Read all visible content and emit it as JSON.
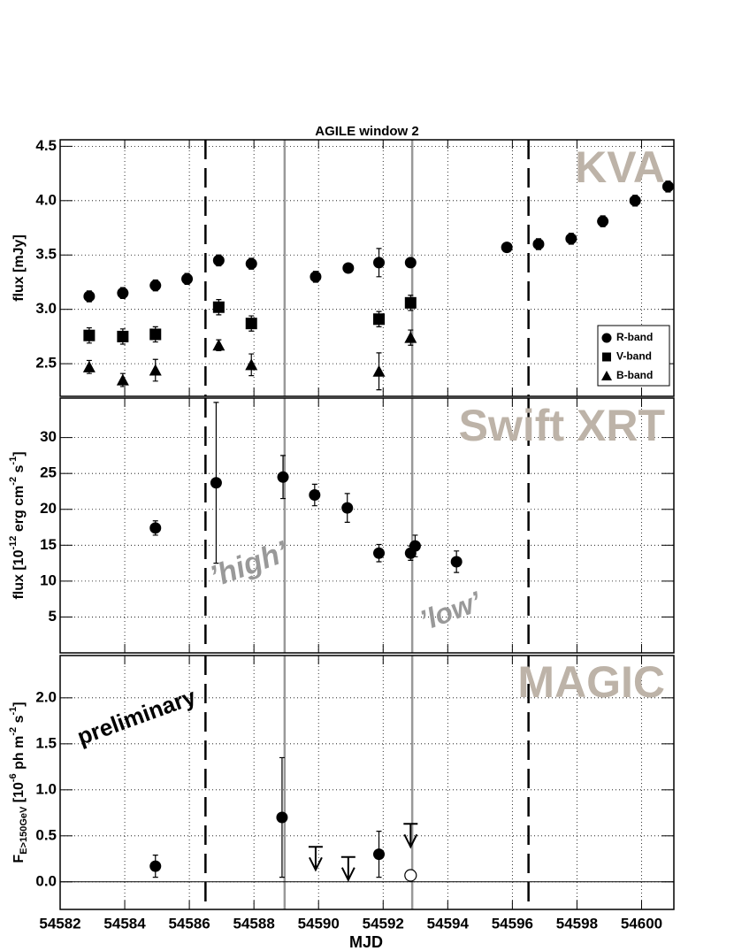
{
  "chart_data": [
    {
      "type": "scatter",
      "title": "AGILE window 2",
      "ylabel": "flux [mJy]",
      "watermark": "KVA",
      "ylim": [
        2.2,
        4.56
      ],
      "yticks": [
        4.5,
        {
          "value": 4,
          "label": "4.0"
        },
        3.5,
        {
          "value": 3,
          "label": "3.0"
        },
        2.5
      ],
      "grid": true,
      "legend": "lower right",
      "dashed_lines": [
        54586.5,
        54596.5
      ],
      "gray_lines": [
        54588.95,
        54592.9
      ],
      "series": [
        {
          "name": "R-band",
          "marker": "circle",
          "color": "#000000",
          "x": [
            54582.9,
            54583.94,
            54584.95,
            54585.93,
            54586.91,
            54587.92,
            54589.91,
            54590.92,
            54591.87,
            54592.85,
            54595.83,
            54596.81,
            54597.82,
            54598.8,
            54599.8,
            54600.82
          ],
          "values": [
            3.12,
            3.15,
            3.22,
            3.28,
            3.45,
            3.42,
            3.3,
            3.38,
            3.43,
            3.43,
            3.57,
            3.6,
            3.65,
            3.81,
            4.0,
            4.13
          ],
          "errors": [
            0.05,
            0.05,
            0.05,
            0.05,
            0.05,
            0.05,
            0.05,
            0.04,
            0.13,
            0.03,
            0.04,
            0.05,
            0.05,
            0.05,
            0.05,
            0.05
          ]
        },
        {
          "name": "V-band",
          "marker": "square",
          "color": "#000000",
          "x": [
            54582.9,
            54583.94,
            54584.95,
            54586.91,
            54587.92,
            54591.87,
            54592.85
          ],
          "values": [
            2.76,
            2.75,
            2.77,
            3.02,
            2.87,
            2.91,
            3.06
          ],
          "errors": [
            0.07,
            0.07,
            0.07,
            0.07,
            0.07,
            0.07,
            0.07
          ]
        },
        {
          "name": "B-band",
          "marker": "triangle",
          "color": "#000000",
          "x": [
            54582.9,
            54583.94,
            54584.95,
            54586.91,
            54587.92,
            54591.87,
            54592.85
          ],
          "values": [
            2.47,
            2.35,
            2.44,
            2.67,
            2.49,
            2.43,
            2.74
          ],
          "errors": [
            0.06,
            0.06,
            0.1,
            0.05,
            0.1,
            0.17,
            0.07
          ]
        }
      ]
    },
    {
      "type": "scatter",
      "ylabel": [
        "flux [10",
        "-12",
        " erg cm",
        "-2",
        " s",
        "-1",
        "]"
      ],
      "watermark": "Swift XRT",
      "ylim": [
        0,
        35.5
      ],
      "yticks": [
        5,
        10,
        15,
        20,
        25,
        30
      ],
      "grid": true,
      "dashed_lines": [
        54586.5,
        54596.5
      ],
      "gray_lines": [
        54588.95,
        54592.9
      ],
      "annotations": [
        "’high’",
        "’low’"
      ],
      "series": [
        {
          "marker": "circle",
          "color": "#000000",
          "x": [
            54584.95,
            54586.83,
            54588.9,
            54589.88,
            54590.89,
            54591.87,
            54592.85,
            54592.99,
            54594.27
          ],
          "values": [
            17.4,
            23.7,
            24.5,
            22.0,
            20.2,
            13.9,
            13.9,
            14.9,
            12.7
          ],
          "errors": [
            1.0,
            11.2,
            3.0,
            1.5,
            2.0,
            1.2,
            1.0,
            1.5,
            1.5
          ]
        }
      ]
    },
    {
      "type": "scatter",
      "ylabel": [
        "F",
        "E>150GeV",
        " [10",
        "-6",
        " ph m",
        "-2",
        " s",
        "-1",
        "]"
      ],
      "watermark": "MAGIC",
      "xlabel": "MJD",
      "xlim": [
        54582,
        54601
      ],
      "xticks": [
        54582,
        54584,
        54586,
        54588,
        54590,
        54592,
        54594,
        54596,
        54598,
        54600
      ],
      "ylim": [
        -0.3,
        2.46
      ],
      "yticks": [
        {
          "value": 0,
          "label": "0.0"
        },
        0.5,
        {
          "value": 1,
          "label": "1.0"
        },
        1.5,
        {
          "value": 2,
          "label": "2.0"
        }
      ],
      "grid": true,
      "hline": 0,
      "dashed_lines": [
        54586.5,
        54596.5
      ],
      "gray_lines": [
        54588.95,
        54592.9
      ],
      "annotations": [
        "preliminary"
      ],
      "series": [
        {
          "marker": "circle",
          "color": "#000000",
          "x": [
            54584.95,
            54588.87,
            54591.87
          ],
          "values": [
            0.17,
            0.7,
            0.3
          ],
          "errors": [
            0.12,
            0.65,
            0.25
          ]
        }
      ],
      "upper_limits": {
        "x": [
          54589.91,
          54590.92,
          54592.85
        ],
        "values": [
          0.38,
          0.27,
          0.63
        ]
      },
      "open_points": {
        "x": [
          54592.85
        ],
        "values": [
          0.07
        ]
      }
    }
  ]
}
